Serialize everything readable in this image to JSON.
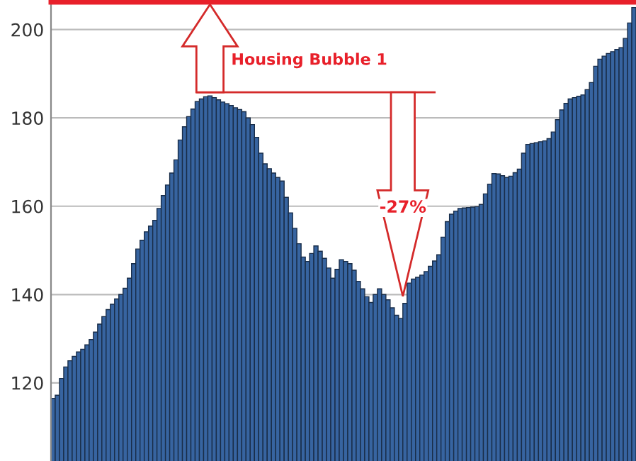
{
  "chart_data": {
    "type": "bar",
    "categories": [
      null,
      null,
      null,
      null,
      null,
      null,
      null,
      null,
      null,
      null,
      null,
      null,
      null,
      null,
      null,
      null,
      null,
      null,
      null,
      null,
      null,
      null,
      null,
      null,
      null,
      null,
      null,
      null,
      null,
      null,
      null,
      null,
      null,
      null,
      null,
      null,
      null,
      null,
      null,
      null,
      null,
      null,
      null,
      null,
      null,
      null,
      null,
      null,
      null,
      null,
      null,
      null,
      null,
      null,
      null,
      null,
      null,
      null,
      null,
      null,
      null,
      null,
      null,
      null,
      null,
      null,
      null,
      null,
      null,
      null,
      null,
      null,
      null,
      null,
      null,
      null,
      null,
      null,
      null,
      null,
      null,
      null,
      null,
      null,
      null,
      null,
      null,
      null,
      null,
      null,
      null,
      null,
      null,
      null,
      null,
      null,
      null,
      null,
      null,
      null,
      null,
      null,
      null,
      null,
      null,
      null,
      null,
      null,
      null,
      null,
      null,
      null,
      null,
      null,
      null,
      null,
      null,
      null,
      null,
      null,
      null,
      null,
      null,
      null,
      null,
      null,
      null,
      null,
      null,
      null,
      null,
      null,
      null,
      null,
      null,
      null,
      null,
      null
    ],
    "values": [
      116.5,
      117.2,
      121,
      123.6,
      125,
      126,
      127,
      127.6,
      128.6,
      129.8,
      131.5,
      133.3,
      135,
      136.6,
      137.8,
      139,
      140,
      141.4,
      143.7,
      147,
      150.3,
      152.3,
      154.2,
      155.5,
      156.8,
      159.5,
      162.4,
      164.8,
      167.5,
      170.5,
      175,
      178,
      180.3,
      182,
      183.7,
      184.3,
      184.8,
      185,
      184.6,
      184.1,
      183.6,
      183.2,
      182.8,
      182.3,
      181.9,
      181.4,
      180,
      178.5,
      175.6,
      172,
      169.6,
      168.5,
      167.5,
      166.5,
      165.7,
      162,
      158.5,
      155,
      151.5,
      148.5,
      147.5,
      149.3,
      151,
      149.8,
      148.2,
      146,
      143.7,
      145.7,
      147.9,
      147.5,
      147,
      145.5,
      143,
      141.3,
      139.5,
      138.2,
      140,
      141.3,
      140,
      138.8,
      137,
      135.3,
      134.6,
      138,
      142.6,
      143.5,
      143.9,
      144.4,
      145.2,
      146.4,
      147.6,
      149,
      153,
      156.5,
      158.2,
      158.9,
      159.5,
      159.6,
      159.7,
      159.8,
      159.9,
      160.4,
      162.8,
      165,
      167.4,
      167.3,
      166.9,
      166.5,
      166.8,
      167.6,
      168.4,
      172,
      174,
      174.2,
      174.4,
      174.6,
      174.8,
      175.3,
      176.8,
      179.6,
      181.8,
      183.3,
      184.3,
      184.6,
      184.9,
      185.2,
      186.4,
      188,
      191.7,
      193.3,
      194,
      194.6,
      195,
      195.5,
      195.9,
      198,
      201.5,
      205
    ],
    "color": "#3764a0",
    "ylim": [
      102.3,
      206.7
    ],
    "yticks": [
      120,
      140,
      160,
      180,
      200
    ],
    "grid": "y",
    "tick_labels": "y",
    "ref_lines": [
      {
        "axis": "y",
        "value": 206.2,
        "color": "#e8202a"
      },
      {
        "axis": "y",
        "value": 185.8,
        "color": "#d42a2a"
      }
    ],
    "annotations": [
      "Housing Bubble 1",
      "-27%"
    ]
  }
}
